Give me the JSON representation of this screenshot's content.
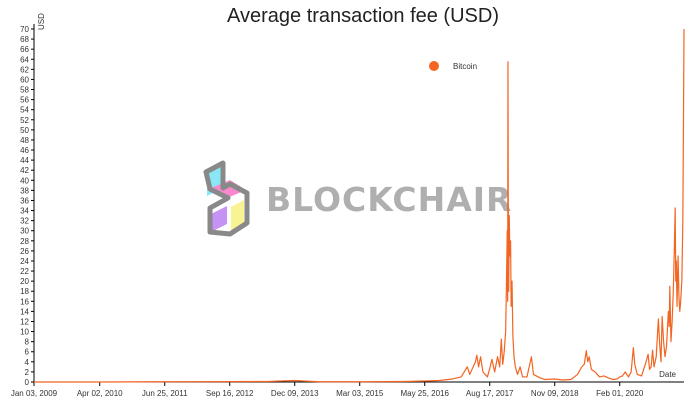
{
  "chart_data": {
    "type": "line",
    "title": "Average transaction fee (USD)",
    "xlabel": "Date",
    "ylabel": "USD",
    "ylim": [
      0,
      70
    ],
    "yticks": [
      0,
      2,
      4,
      6,
      8,
      10,
      12,
      14,
      16,
      18,
      20,
      22,
      24,
      26,
      28,
      30,
      32,
      34,
      36,
      38,
      40,
      42,
      44,
      46,
      48,
      50,
      52,
      54,
      56,
      58,
      60,
      62,
      64,
      66,
      68,
      70
    ],
    "xlim": [
      "2009-01-03",
      "2021-04-20"
    ],
    "xtick_labels": [
      "Jan 03, 2009",
      "Apr 02, 2010",
      "Jun 25, 2011",
      "Sep 16, 2012",
      "Dec 09, 2013",
      "Mar 03, 2015",
      "May 25, 2016",
      "Aug 17, 2017",
      "Nov 09, 2018",
      "Feb 01, 2020"
    ],
    "xtick_dates": [
      "2009-01-03",
      "2010-04-02",
      "2011-06-25",
      "2012-09-16",
      "2013-12-09",
      "2015-03-03",
      "2016-05-25",
      "2017-08-17",
      "2018-11-09",
      "2020-02-01"
    ],
    "grid": false,
    "legend_position": "top-right",
    "series": [
      {
        "name": "Bitcoin",
        "color": "#f26522",
        "points": [
          [
            "2009-01-03",
            0
          ],
          [
            "2010-04-02",
            0
          ],
          [
            "2011-06-25",
            0.05
          ],
          [
            "2012-09-16",
            0.08
          ],
          [
            "2013-06-01",
            0.1
          ],
          [
            "2013-12-09",
            0.3
          ],
          [
            "2014-02-01",
            0.2
          ],
          [
            "2014-06-01",
            0.05
          ],
          [
            "2015-03-03",
            0.05
          ],
          [
            "2016-01-01",
            0.1
          ],
          [
            "2016-05-25",
            0.2
          ],
          [
            "2016-09-01",
            0.3
          ],
          [
            "2016-12-01",
            0.6
          ],
          [
            "2017-02-01",
            1
          ],
          [
            "2017-03-15",
            3
          ],
          [
            "2017-04-01",
            1.5
          ],
          [
            "2017-05-10",
            4
          ],
          [
            "2017-05-20",
            5.3
          ],
          [
            "2017-06-01",
            3
          ],
          [
            "2017-06-15",
            5
          ],
          [
            "2017-07-01",
            2
          ],
          [
            "2017-08-01",
            1
          ],
          [
            "2017-08-20",
            3
          ],
          [
            "2017-09-01",
            4.5
          ],
          [
            "2017-09-20",
            2
          ],
          [
            "2017-10-10",
            5
          ],
          [
            "2017-10-25",
            3
          ],
          [
            "2017-11-05",
            8.5
          ],
          [
            "2017-11-15",
            3.5
          ],
          [
            "2017-11-25",
            6
          ],
          [
            "2017-12-05",
            10
          ],
          [
            "2017-12-12",
            22
          ],
          [
            "2017-12-16",
            30
          ],
          [
            "2017-12-19",
            16
          ],
          [
            "2017-12-21",
            63.5
          ],
          [
            "2017-12-23",
            36
          ],
          [
            "2017-12-26",
            18
          ],
          [
            "2017-12-30",
            33
          ],
          [
            "2018-01-03",
            25
          ],
          [
            "2018-01-08",
            28
          ],
          [
            "2018-01-12",
            15
          ],
          [
            "2018-01-18",
            20
          ],
          [
            "2018-01-24",
            9
          ],
          [
            "2018-02-01",
            5
          ],
          [
            "2018-02-10",
            3
          ],
          [
            "2018-02-25",
            1.5
          ],
          [
            "2018-03-15",
            3
          ],
          [
            "2018-04-01",
            1
          ],
          [
            "2018-05-01",
            1
          ],
          [
            "2018-06-01",
            5
          ],
          [
            "2018-06-15",
            1.5
          ],
          [
            "2018-08-01",
            0.8
          ],
          [
            "2018-09-01",
            0.5
          ],
          [
            "2018-11-09",
            0.6
          ],
          [
            "2019-01-01",
            0.4
          ],
          [
            "2019-03-01",
            0.5
          ],
          [
            "2019-04-15",
            1.5
          ],
          [
            "2019-05-15",
            3
          ],
          [
            "2019-06-01",
            3.5
          ],
          [
            "2019-06-15",
            6.2
          ],
          [
            "2019-06-25",
            4
          ],
          [
            "2019-07-05",
            5
          ],
          [
            "2019-07-20",
            2.5
          ],
          [
            "2019-08-15",
            2
          ],
          [
            "2019-09-15",
            1
          ],
          [
            "2019-10-15",
            1.2
          ],
          [
            "2019-11-15",
            0.8
          ],
          [
            "2019-12-15",
            0.5
          ],
          [
            "2020-01-15",
            0.6
          ],
          [
            "2020-02-01",
            1
          ],
          [
            "2020-02-20",
            1.2
          ],
          [
            "2020-03-10",
            2
          ],
          [
            "2020-04-01",
            1
          ],
          [
            "2020-04-20",
            2
          ],
          [
            "2020-05-05",
            6.8
          ],
          [
            "2020-05-15",
            3.5
          ],
          [
            "2020-06-01",
            1.5
          ],
          [
            "2020-07-01",
            1.2
          ],
          [
            "2020-08-01",
            4
          ],
          [
            "2020-08-15",
            5.5
          ],
          [
            "2020-08-25",
            2.5
          ],
          [
            "2020-09-05",
            3
          ],
          [
            "2020-09-15",
            6.3
          ],
          [
            "2020-09-25",
            3
          ],
          [
            "2020-10-10",
            5
          ],
          [
            "2020-10-25",
            12.5
          ],
          [
            "2020-11-02",
            8
          ],
          [
            "2020-11-12",
            4
          ],
          [
            "2020-11-20",
            13
          ],
          [
            "2020-11-30",
            8
          ],
          [
            "2020-12-10",
            5
          ],
          [
            "2020-12-20",
            7
          ],
          [
            "2021-01-02",
            14
          ],
          [
            "2021-01-08",
            11
          ],
          [
            "2021-01-12",
            19
          ],
          [
            "2021-01-20",
            8
          ],
          [
            "2021-01-28",
            12
          ],
          [
            "2021-02-05",
            18
          ],
          [
            "2021-02-12",
            26
          ],
          [
            "2021-02-18",
            34.5
          ],
          [
            "2021-02-22",
            20
          ],
          [
            "2021-02-26",
            24
          ],
          [
            "2021-03-03",
            15
          ],
          [
            "2021-03-10",
            25
          ],
          [
            "2021-03-16",
            17
          ],
          [
            "2021-03-22",
            14
          ],
          [
            "2021-03-28",
            16
          ],
          [
            "2021-04-05",
            20
          ],
          [
            "2021-04-12",
            32
          ],
          [
            "2021-04-17",
            55
          ],
          [
            "2021-04-20",
            70
          ]
        ]
      }
    ]
  },
  "watermark": {
    "text": "BLOCKCHAIR",
    "colors": {
      "outline": "#7f7f7f",
      "cyan": "#7fe5f6",
      "pink": "#f97fcc",
      "purple": "#bf8af3",
      "yellow": "#f9f38a"
    }
  }
}
